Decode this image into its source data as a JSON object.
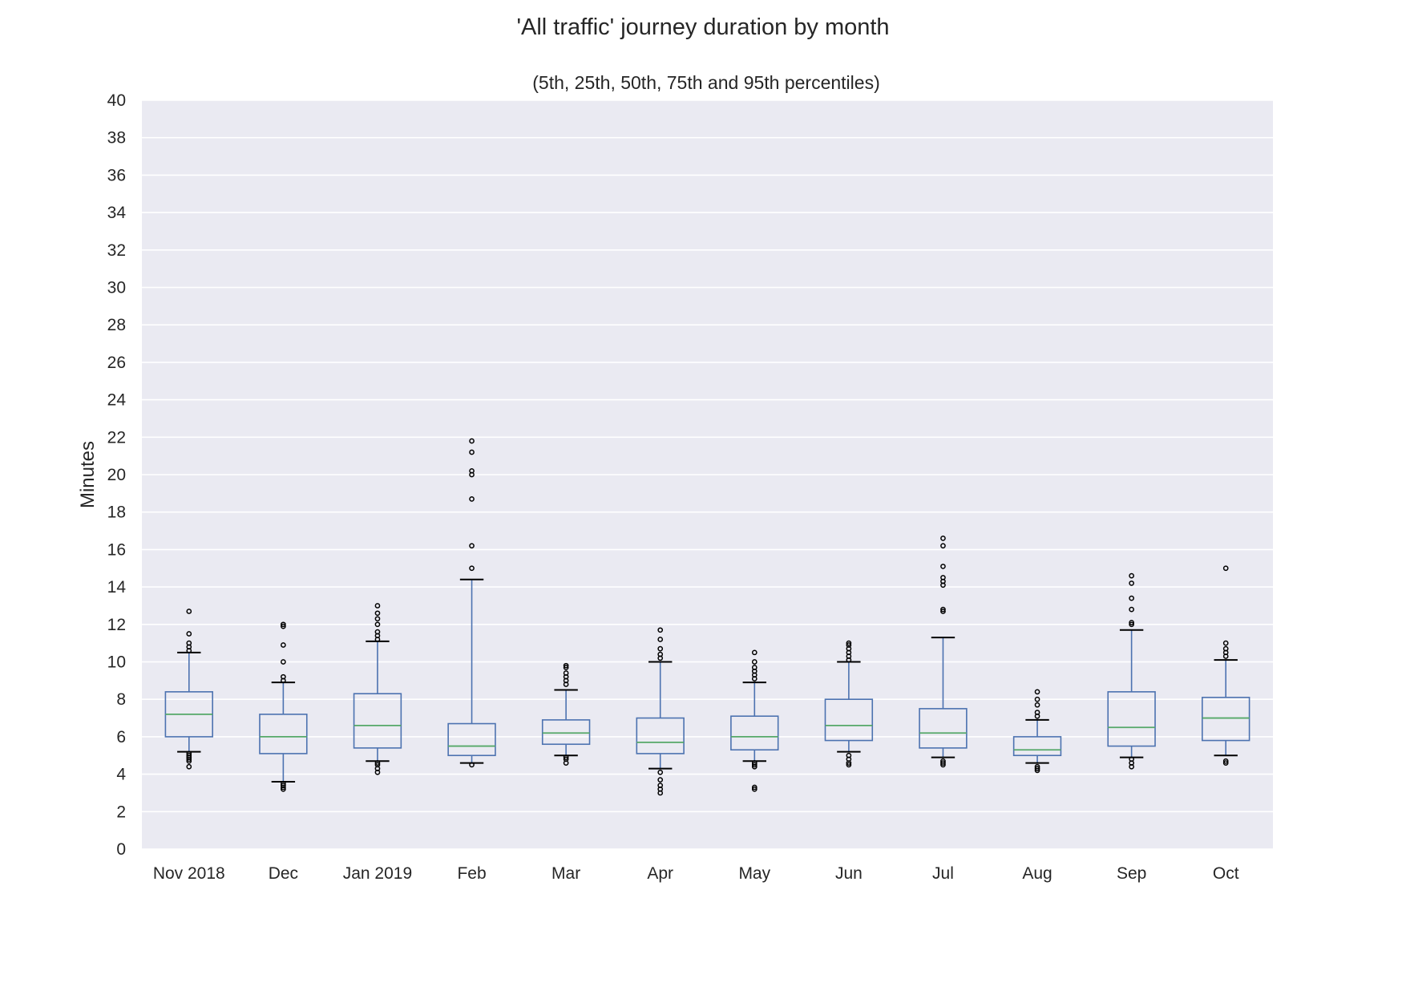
{
  "title": "'All traffic' journey duration by month",
  "chart_data": {
    "type": "box",
    "subtitle": "(5th, 25th, 50th, 75th and 95th percentiles)",
    "ylabel": "Minutes",
    "xlabel": "",
    "ylim": [
      0,
      40
    ],
    "yticks": [
      0,
      2,
      4,
      6,
      8,
      10,
      12,
      14,
      16,
      18,
      20,
      22,
      24,
      26,
      28,
      30,
      32,
      34,
      36,
      38,
      40
    ],
    "grid": true,
    "colors": {
      "background": "#eaeaf2",
      "grid": "#ffffff",
      "box": "#4c72b0",
      "median": "#55a868",
      "whisker_cap": "#000000",
      "outlier": "#000000"
    },
    "categories": [
      "Nov 2018",
      "Dec",
      "Jan 2019",
      "Feb",
      "Mar",
      "Apr",
      "May",
      "Jun",
      "Jul",
      "Aug",
      "Sep",
      "Oct"
    ],
    "boxes": [
      {
        "p5": 5.2,
        "q1": 6.0,
        "median": 7.2,
        "q3": 8.4,
        "p95": 10.5,
        "outliers": [
          4.4,
          4.7,
          4.8,
          4.9,
          5.0,
          5.1,
          10.6,
          10.8,
          11.0,
          11.5,
          12.7
        ]
      },
      {
        "p5": 3.6,
        "q1": 5.1,
        "median": 6.0,
        "q3": 7.2,
        "p95": 8.9,
        "outliers": [
          3.2,
          3.3,
          3.4,
          3.5,
          9.0,
          9.2,
          10.0,
          10.9,
          11.9,
          12.0
        ]
      },
      {
        "p5": 4.7,
        "q1": 5.4,
        "median": 6.6,
        "q3": 8.3,
        "p95": 11.1,
        "outliers": [
          4.1,
          4.3,
          4.5,
          4.6,
          11.2,
          11.4,
          11.6,
          12.0,
          12.3,
          12.6,
          13.0
        ]
      },
      {
        "p5": 4.6,
        "q1": 5.0,
        "median": 5.5,
        "q3": 6.7,
        "p95": 14.4,
        "outliers": [
          4.5,
          15.0,
          16.2,
          18.7,
          20.0,
          20.2,
          21.2,
          21.8
        ]
      },
      {
        "p5": 5.0,
        "q1": 5.6,
        "median": 6.2,
        "q3": 6.9,
        "p95": 8.5,
        "outliers": [
          4.6,
          4.8,
          4.9,
          8.8,
          9.0,
          9.2,
          9.4,
          9.7,
          9.8
        ]
      },
      {
        "p5": 4.3,
        "q1": 5.1,
        "median": 5.7,
        "q3": 7.0,
        "p95": 10.0,
        "outliers": [
          3.0,
          3.2,
          3.4,
          3.7,
          4.1,
          10.2,
          10.4,
          10.7,
          11.2,
          11.7
        ]
      },
      {
        "p5": 4.7,
        "q1": 5.3,
        "median": 6.0,
        "q3": 7.1,
        "p95": 8.9,
        "outliers": [
          3.2,
          3.3,
          4.4,
          4.5,
          4.6,
          9.1,
          9.3,
          9.5,
          9.7,
          10.0,
          10.5
        ]
      },
      {
        "p5": 5.2,
        "q1": 5.8,
        "median": 6.6,
        "q3": 8.0,
        "p95": 10.0,
        "outliers": [
          4.5,
          4.6,
          4.8,
          5.0,
          10.1,
          10.3,
          10.5,
          10.7,
          10.9,
          11.0
        ]
      },
      {
        "p5": 4.9,
        "q1": 5.4,
        "median": 6.2,
        "q3": 7.5,
        "p95": 11.3,
        "outliers": [
          4.5,
          4.6,
          4.7,
          12.7,
          12.8,
          14.1,
          14.3,
          14.5,
          15.1,
          16.2,
          16.6
        ]
      },
      {
        "p5": 4.6,
        "q1": 5.0,
        "median": 5.3,
        "q3": 6.0,
        "p95": 6.9,
        "outliers": [
          4.2,
          4.3,
          4.4,
          7.1,
          7.3,
          7.7,
          8.0,
          8.4
        ]
      },
      {
        "p5": 4.9,
        "q1": 5.5,
        "median": 6.5,
        "q3": 8.4,
        "p95": 11.7,
        "outliers": [
          4.4,
          4.6,
          4.8,
          12.0,
          12.1,
          12.8,
          13.4,
          14.2,
          14.6
        ]
      },
      {
        "p5": 5.0,
        "q1": 5.8,
        "median": 7.0,
        "q3": 8.1,
        "p95": 10.1,
        "outliers": [
          4.6,
          4.7,
          10.3,
          10.5,
          10.7,
          11.0,
          15.0
        ]
      }
    ]
  }
}
